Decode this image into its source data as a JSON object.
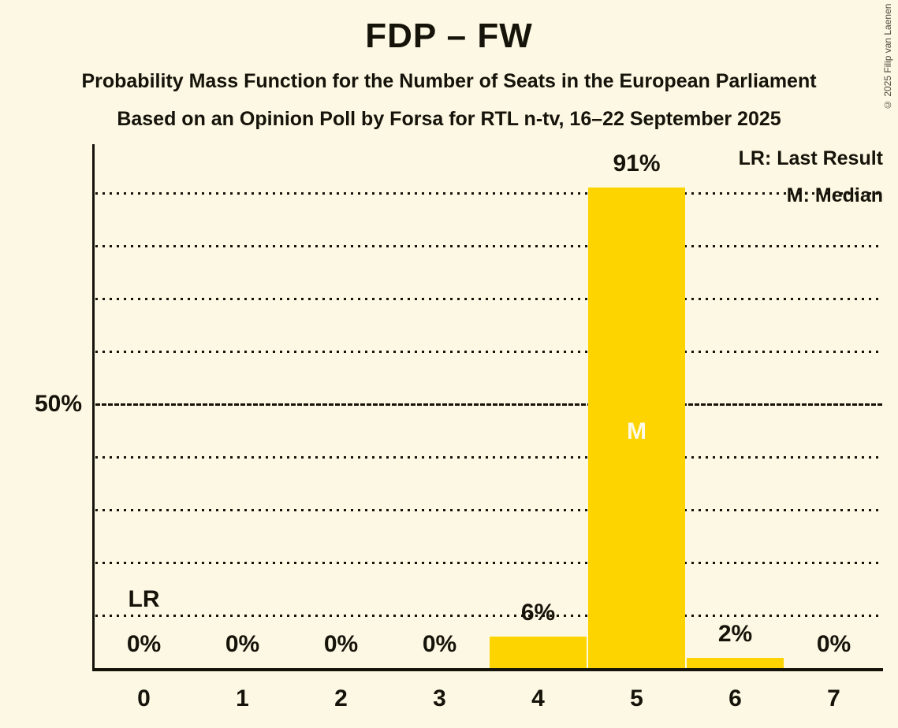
{
  "title": "FDP – FW",
  "subtitle1": "Probability Mass Function for the Number of Seats in the European Parliament",
  "subtitle2": "Based on an Opinion Poll by Forsa for RTL n-tv, 16–22 September 2025",
  "copyright": "© 2025 Filip van Laenen",
  "legend": {
    "last_result": "LR: Last Result",
    "median": "M: Median"
  },
  "y_axis": {
    "tick_label": "50%"
  },
  "colors": {
    "background": "#FDF8E3",
    "bar": "#FDD400",
    "text": "#15130A",
    "median_label_text": "#FEFAE6"
  },
  "chart_data": {
    "type": "bar",
    "title": "FDP – FW",
    "categories": [
      "0",
      "1",
      "2",
      "3",
      "4",
      "5",
      "6",
      "7"
    ],
    "values": [
      0,
      0,
      0,
      0,
      6,
      91,
      2,
      0
    ],
    "bar_labels": [
      "0%",
      "0%",
      "0%",
      "0%",
      "6%",
      "91%",
      "2%",
      "0%"
    ],
    "ylim": [
      0,
      100
    ],
    "y_tick_labeled": {
      "pct": 50,
      "label": "50%"
    },
    "gridlines": {
      "interval_pct": 10,
      "solid_at_pct": 50,
      "style": "dotted"
    },
    "legend_position": "top-right",
    "annotations": {
      "last_result": {
        "seat_index": 0,
        "label": "LR"
      },
      "median": {
        "seat_index": 5,
        "label": "M"
      }
    }
  }
}
